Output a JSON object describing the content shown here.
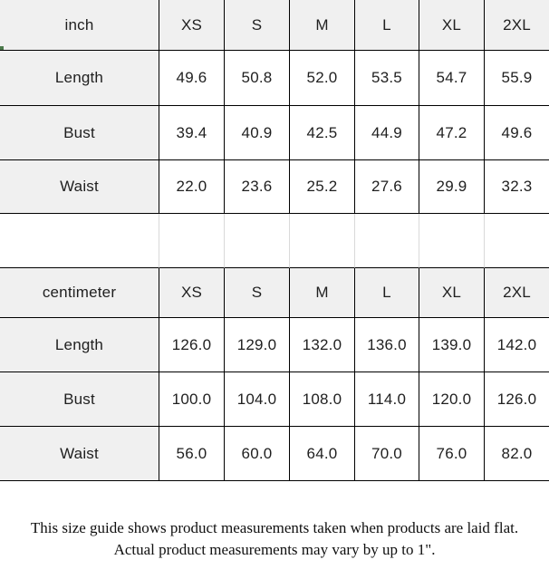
{
  "colors": {
    "header_bg": "#f0f0f0",
    "cell_bg": "#ffffff",
    "table_border": "#000000",
    "gap_line": "#d9d9d9",
    "marker_green": "#4c7a4c"
  },
  "inch_table": {
    "unit_label": "inch",
    "sizes": [
      "XS",
      "S",
      "M",
      "L",
      "XL",
      "2XL"
    ],
    "rows": [
      {
        "label": "Length",
        "values": [
          "49.6",
          "50.8",
          "52.0",
          "53.5",
          "54.7",
          "55.9"
        ]
      },
      {
        "label": "Bust",
        "values": [
          "39.4",
          "40.9",
          "42.5",
          "44.9",
          "47.2",
          "49.6"
        ]
      },
      {
        "label": "Waist",
        "values": [
          "22.0",
          "23.6",
          "25.2",
          "27.6",
          "29.9",
          "32.3"
        ]
      }
    ]
  },
  "cm_table": {
    "unit_label": "centimeter",
    "sizes": [
      "XS",
      "S",
      "M",
      "L",
      "XL",
      "2XL"
    ],
    "rows": [
      {
        "label": "Length",
        "values": [
          "126.0",
          "129.0",
          "132.0",
          "136.0",
          "139.0",
          "142.0"
        ]
      },
      {
        "label": "Bust",
        "values": [
          "100.0",
          "104.0",
          "108.0",
          "114.0",
          "120.0",
          "126.0"
        ]
      },
      {
        "label": "Waist",
        "values": [
          "56.0",
          "60.0",
          "64.0",
          "70.0",
          "76.0",
          "82.0"
        ]
      }
    ]
  },
  "footer": {
    "note": "This size guide shows product measurements taken when products are laid flat. Actual product measurements may vary by up to 1\"."
  }
}
